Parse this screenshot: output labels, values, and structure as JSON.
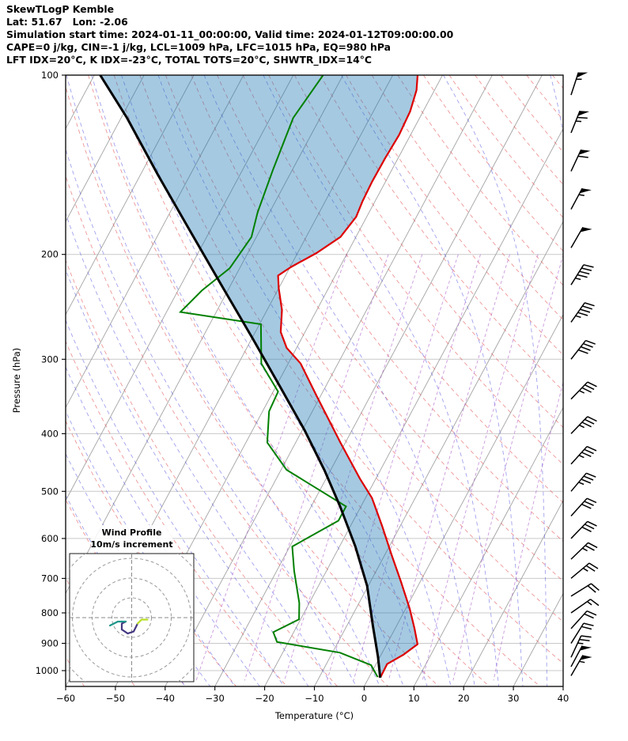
{
  "header": {
    "title": "SkewTLogP Kemble",
    "location": "Lat: 51.67   Lon: -2.06",
    "times": "Simulation start time: 2024-01-11_00:00:00, Valid time: 2024-01-12T09:00:00.00",
    "indices1": "CAPE=0 j/kg, CIN=-1 j/kg, LCL=1009 hPa, LFC=1015 hPa, EQ=980 hPa",
    "indices2": "LFT IDX=20°C, K IDX=-23°C, TOTAL TOTS=20°C, SHWTR_IDX=14°C"
  },
  "chart_data": {
    "type": "skewt-logp",
    "xlabel": "Temperature (°C)",
    "ylabel": "Pressure (hPa)",
    "x_ticks": [
      -60,
      -50,
      -40,
      -30,
      -20,
      -10,
      0,
      10,
      20,
      30,
      40
    ],
    "y_ticks": [
      100,
      200,
      300,
      400,
      500,
      600,
      700,
      800,
      900,
      1000
    ],
    "xlim": [
      -60,
      40
    ],
    "plim": [
      100,
      1063
    ],
    "series": {
      "temperature": {
        "name": "temperature",
        "color": "#dd0000",
        "points": [
          [
            100,
            -55.0
          ],
          [
            106,
            -53.6
          ],
          [
            115,
            -52.6
          ],
          [
            126,
            -52.3
          ],
          [
            138,
            -52.6
          ],
          [
            151,
            -52.7
          ],
          [
            163,
            -52.5
          ],
          [
            173,
            -52.1
          ],
          [
            187,
            -53.1
          ],
          [
            199,
            -56.2
          ],
          [
            210,
            -59.8
          ],
          [
            217,
            -61.5
          ],
          [
            228,
            -60.0
          ],
          [
            248,
            -57.0
          ],
          [
            270,
            -54.9
          ],
          [
            287,
            -52.0
          ],
          [
            305,
            -47.5
          ],
          [
            345,
            -40.9
          ],
          [
            414,
            -31.0
          ],
          [
            476,
            -23.2
          ],
          [
            513,
            -18.7
          ],
          [
            571,
            -13.7
          ],
          [
            637,
            -8.8
          ],
          [
            710,
            -3.8
          ],
          [
            787,
            0.8
          ],
          [
            850,
            3.9
          ],
          [
            903,
            6.2
          ],
          [
            940,
            4.5
          ],
          [
            975,
            2.2
          ],
          [
            1025,
            2.3
          ]
        ]
      },
      "dewpoint": {
        "name": "dewpoint",
        "color": "#008000",
        "points": [
          [
            100,
            -74.0
          ],
          [
            118,
            -75.4
          ],
          [
            144,
            -73.9
          ],
          [
            170,
            -72.4
          ],
          [
            187,
            -71.0
          ],
          [
            211,
            -72.0
          ],
          [
            230,
            -75.2
          ],
          [
            250,
            -77.2
          ],
          [
            262,
            -59.7
          ],
          [
            305,
            -55.4
          ],
          [
            340,
            -49.0
          ],
          [
            367,
            -48.7
          ],
          [
            414,
            -45.7
          ],
          [
            460,
            -38.9
          ],
          [
            530,
            -23.0
          ],
          [
            560,
            -23.0
          ],
          [
            619,
            -29.5
          ],
          [
            680,
            -26.5
          ],
          [
            770,
            -22.0
          ],
          [
            820,
            -20.3
          ],
          [
            862,
            -24.1
          ],
          [
            895,
            -22.3
          ],
          [
            933,
            -8.5
          ],
          [
            979,
            -0.9
          ],
          [
            1025,
            1.7
          ]
        ]
      },
      "parcel": {
        "name": "parcel",
        "color": "#000000",
        "points": [
          [
            100,
            -118.8
          ],
          [
            118,
            -108.8
          ],
          [
            147,
            -96.5
          ],
          [
            182,
            -84.2
          ],
          [
            225,
            -71.9
          ],
          [
            278,
            -59.6
          ],
          [
            335,
            -48.9
          ],
          [
            395,
            -39.5
          ],
          [
            461,
            -31.2
          ],
          [
            530,
            -24.2
          ],
          [
            619,
            -16.8
          ],
          [
            721,
            -10.2
          ],
          [
            840,
            -4.8
          ],
          [
            948,
            -0.4
          ],
          [
            1028,
            2.3
          ]
        ]
      }
    },
    "shade_color": "#1f77b4",
    "background": {
      "isotherms": {
        "color": "#a3a3a3",
        "values": [
          -120,
          -110,
          -100,
          -90,
          -80,
          -70,
          -60,
          -50,
          -40,
          -30,
          -20,
          -10,
          0,
          10,
          20,
          30,
          40
        ]
      },
      "pressure_lines": {
        "color": "#c9c9c9",
        "values": [
          100,
          200,
          300,
          400,
          500,
          600,
          700,
          800,
          900,
          1000
        ]
      },
      "dry_adiabats": {
        "color": "#e04040",
        "values": [
          -60,
          -50,
          -40,
          -30,
          -20,
          -10,
          0,
          10,
          20,
          30,
          40,
          50,
          60,
          70,
          80,
          90,
          100,
          110,
          120,
          130,
          140,
          150,
          160,
          170,
          180,
          190,
          200,
          210,
          220,
          230,
          240
        ]
      },
      "moist_adiabats": {
        "color": "#4444dd",
        "values": [
          -40,
          -35,
          -30,
          -25,
          -20,
          -15,
          -10,
          -5,
          0,
          5,
          10,
          15,
          20,
          25,
          30,
          35,
          40
        ]
      },
      "mixing_ratio": {
        "color": "#a855c8",
        "values_gkg": [
          0.2,
          0.5,
          1,
          2,
          3,
          5,
          8,
          12,
          20
        ]
      }
    },
    "wind_barbs": [
      {
        "p": 1020,
        "kt": 55,
        "dir": 30
      },
      {
        "p": 985,
        "kt": 50,
        "dir": 28
      },
      {
        "p": 950,
        "kt": 25,
        "dir": 25
      },
      {
        "p": 900,
        "kt": 20,
        "dir": 32
      },
      {
        "p": 850,
        "kt": 18,
        "dir": 42
      },
      {
        "p": 800,
        "kt": 15,
        "dir": 55
      },
      {
        "p": 750,
        "kt": 20,
        "dir": 58
      },
      {
        "p": 700,
        "kt": 25,
        "dir": 50
      },
      {
        "p": 650,
        "kt": 25,
        "dir": 46
      },
      {
        "p": 600,
        "kt": 30,
        "dir": 44
      },
      {
        "p": 550,
        "kt": 30,
        "dir": 42
      },
      {
        "p": 500,
        "kt": 35,
        "dir": 40
      },
      {
        "p": 450,
        "kt": 35,
        "dir": 42
      },
      {
        "p": 400,
        "kt": 35,
        "dir": 44
      },
      {
        "p": 350,
        "kt": 35,
        "dir": 44
      },
      {
        "p": 300,
        "kt": 40,
        "dir": 38
      },
      {
        "p": 260,
        "kt": 45,
        "dir": 35
      },
      {
        "p": 225,
        "kt": 45,
        "dir": 32
      },
      {
        "p": 195,
        "kt": 50,
        "dir": 30
      },
      {
        "p": 168,
        "kt": 55,
        "dir": 28
      },
      {
        "p": 145,
        "kt": 60,
        "dir": 25
      },
      {
        "p": 125,
        "kt": 65,
        "dir": 22
      },
      {
        "p": 108,
        "kt": 55,
        "dir": 18
      }
    ],
    "hodograph": {
      "title1": "Wind Profile",
      "title2": "10m/s increment",
      "ring_interval_ms": 10,
      "rings": [
        10,
        20,
        30,
        40
      ],
      "segments": [
        {
          "color": "#453781",
          "uv": [
            [
              3,
              -3
            ],
            [
              1,
              -7
            ],
            [
              -2,
              -8
            ],
            [
              -5,
              -6
            ],
            [
              -5,
              -3
            ],
            [
              -3,
              -2
            ]
          ]
        },
        {
          "color": "#1f968b",
          "uv": [
            [
              -3,
              -2
            ],
            [
              -7,
              -2
            ],
            [
              -11,
              -4
            ]
          ]
        },
        {
          "color": "#b8de29",
          "uv": [
            [
              3,
              -3
            ],
            [
              5,
              -1
            ],
            [
              8,
              -1
            ]
          ]
        }
      ]
    }
  }
}
